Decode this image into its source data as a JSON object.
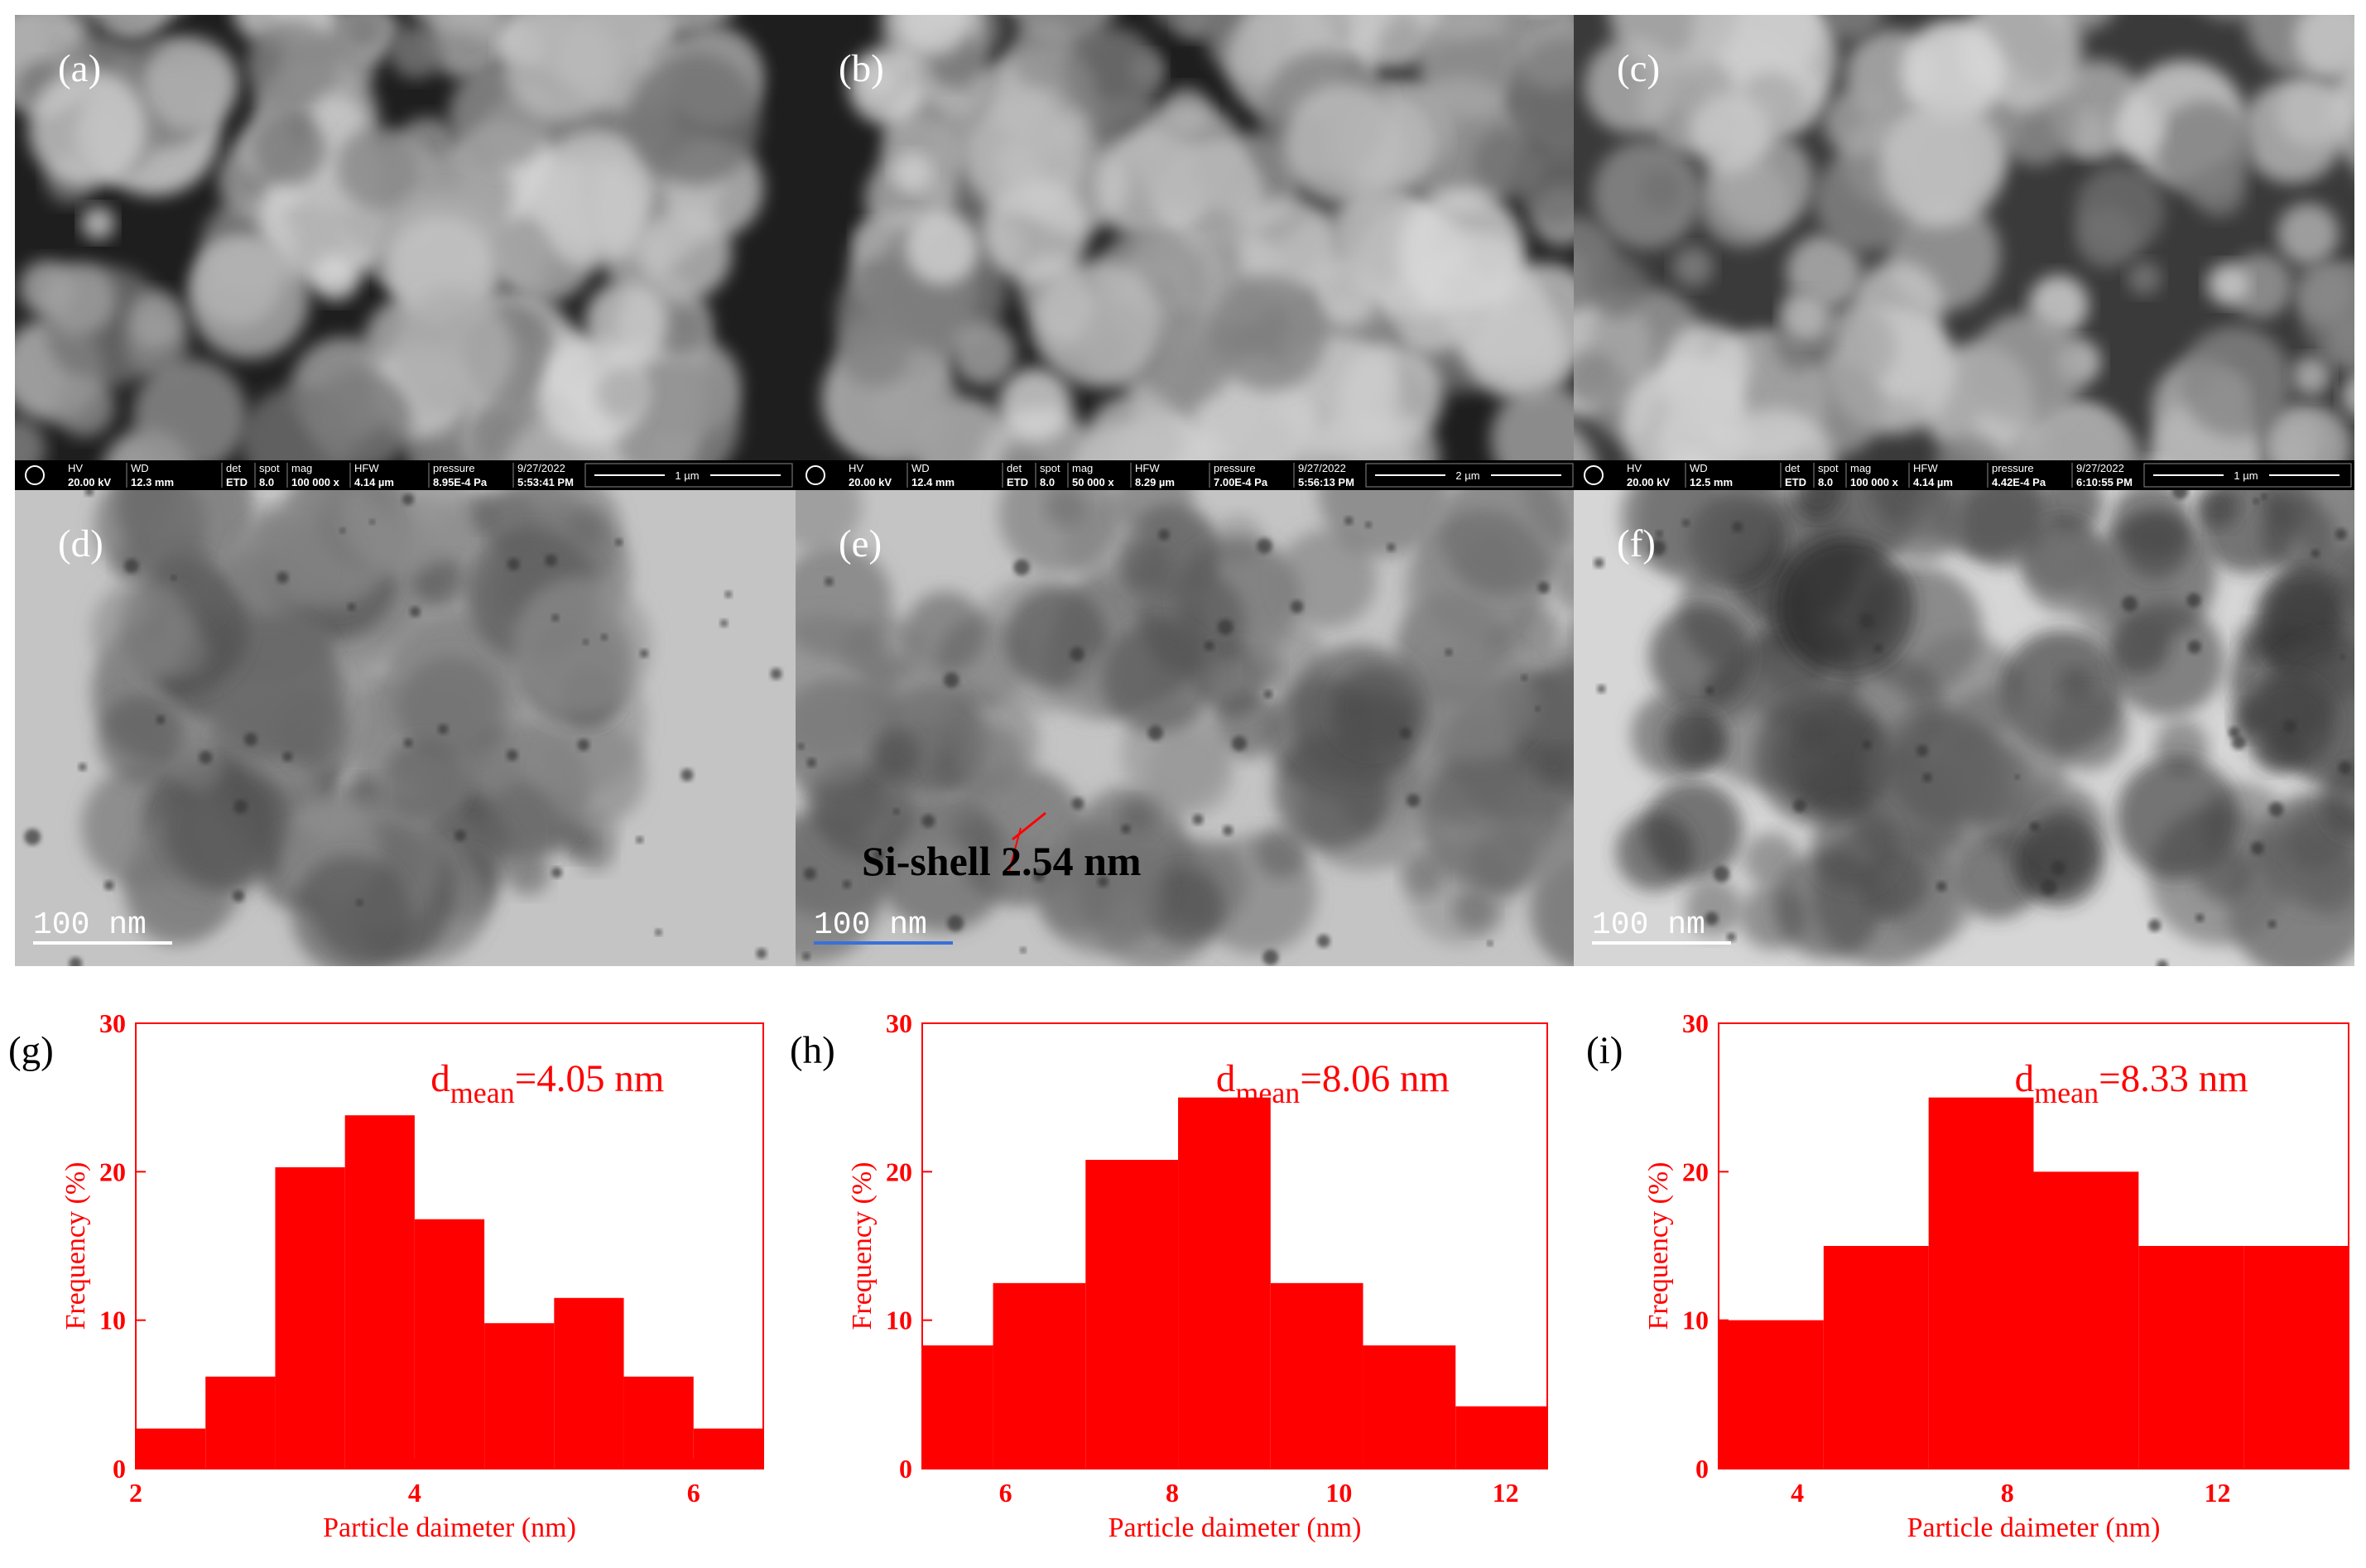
{
  "panels": [
    {
      "label": "(a)",
      "info": [
        [
          "HV",
          "20.00 kV"
        ],
        [
          "WD",
          "12.3 mm"
        ],
        [
          "det",
          "ETD"
        ],
        [
          "spot",
          "8.0"
        ],
        [
          "mag",
          "100 000 x"
        ],
        [
          "HFW",
          "4.14 µm"
        ],
        [
          "pressure",
          "8.95E-4 Pa"
        ],
        [
          "9/27/2022",
          "5:53:41 PM"
        ]
      ],
      "scale": "1 µm"
    },
    {
      "label": "(b)",
      "info": [
        [
          "HV",
          "20.00 kV"
        ],
        [
          "WD",
          "12.4 mm"
        ],
        [
          "det",
          "ETD"
        ],
        [
          "spot",
          "8.0"
        ],
        [
          "mag",
          "50 000 x"
        ],
        [
          "HFW",
          "8.29 µm"
        ],
        [
          "pressure",
          "7.00E-4 Pa"
        ],
        [
          "9/27/2022",
          "5:56:13 PM"
        ]
      ],
      "scale": "2 µm"
    },
    {
      "label": "(c)",
      "info": [
        [
          "HV",
          "20.00 kV"
        ],
        [
          "WD",
          "12.5 mm"
        ],
        [
          "det",
          "ETD"
        ],
        [
          "spot",
          "8.0"
        ],
        [
          "mag",
          "100 000 x"
        ],
        [
          "HFW",
          "4.14 µm"
        ],
        [
          "pressure",
          "4.42E-4 Pa"
        ],
        [
          "9/27/2022",
          "6:10:55 PM"
        ]
      ],
      "scale": "1 µm"
    },
    {
      "label": "(d)",
      "scale": "100 nm"
    },
    {
      "label": "(e)",
      "scale": "100 nm",
      "annotation": "Si-shell 2.54 nm"
    },
    {
      "label": "(f)",
      "scale": "100 nm"
    }
  ],
  "chart_data": [
    {
      "type": "histogram",
      "label": "(g)",
      "ylabel": "Frequency (%)",
      "xlabel": "Particle daimeter (nm)",
      "annotation": {
        "main": "d",
        "sub": "mean",
        "rest": "=4.05 nm"
      },
      "color": "#ff0000",
      "bins": [
        2,
        2.5,
        3,
        3.5,
        4,
        4.5,
        5,
        5.5,
        6,
        6.5
      ],
      "values": [
        2.7,
        6.2,
        20.3,
        23.8,
        16.8,
        9.8,
        11.5,
        6.2,
        2.7
      ],
      "xlim": [
        2,
        6.5
      ],
      "ylim": [
        0,
        30
      ],
      "xticks": [
        2,
        4,
        6
      ],
      "yticks": [
        0,
        10,
        20,
        30
      ]
    },
    {
      "type": "histogram",
      "label": "(h)",
      "ylabel": "Frequency (%)",
      "xlabel": "Particle daimeter (nm)",
      "annotation": {
        "main": "d",
        "sub": "mean",
        "rest": "=8.06 nm"
      },
      "color": "#ff0000",
      "bins": [
        4.74,
        5.85,
        6.96,
        8.07,
        9.18,
        10.29,
        11.4,
        12.51
      ],
      "values": [
        8.3,
        12.5,
        20.8,
        25,
        12.5,
        8.3,
        4.2
      ],
      "xlim": [
        5,
        12.5
      ],
      "ylim": [
        0,
        30
      ],
      "xticks": [
        6,
        8,
        10,
        12
      ],
      "yticks": [
        0,
        10,
        20,
        30
      ]
    },
    {
      "type": "histogram",
      "label": "(i)",
      "ylabel": "Frequency (%)",
      "xlabel": "Particle daimeter (nm)",
      "annotation": {
        "main": "d",
        "sub": "mean",
        "rest": "=8.33 nm"
      },
      "color": "#ff0000",
      "bins": [
        2.5,
        4.5,
        6.5,
        8.5,
        10.5,
        12.5,
        14.5
      ],
      "values": [
        10,
        15,
        25,
        20,
        15,
        15
      ],
      "xlim": [
        2.5,
        14.5
      ],
      "ylim": [
        0,
        30
      ],
      "xticks": [
        4,
        8,
        12
      ],
      "yticks": [
        0,
        10,
        20,
        30
      ]
    }
  ]
}
